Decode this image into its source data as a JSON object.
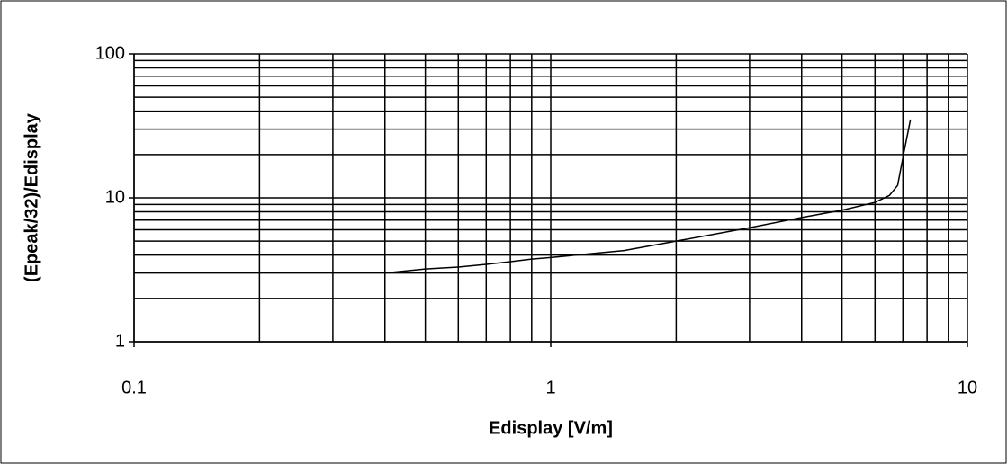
{
  "chart_data": {
    "type": "line",
    "x_label": "Edisplay [V/m]",
    "y_label": "(Epeak/32)/Edisplay",
    "x": [
      0.4,
      0.5,
      0.6,
      0.7,
      0.8,
      0.9,
      1,
      1.5,
      2,
      3,
      4,
      5,
      6,
      6.5,
      6.8,
      7,
      7.3
    ],
    "series": [
      {
        "color": "#000000",
        "values": [
          3,
          3.2,
          3.3,
          3.45,
          3.6,
          3.75,
          3.85,
          4.3,
          5,
          6.2,
          7.3,
          8.2,
          9.3,
          10.4,
          12.2,
          19,
          35
        ]
      }
    ],
    "xlim": [
      0.1,
      10
    ],
    "ylim": [
      1,
      100
    ],
    "xticks": [
      0.1,
      1,
      10
    ],
    "yticks": [
      1,
      10,
      100
    ],
    "xscale": "log",
    "yscale": "log",
    "grid": true,
    "minor_grid": true
  }
}
